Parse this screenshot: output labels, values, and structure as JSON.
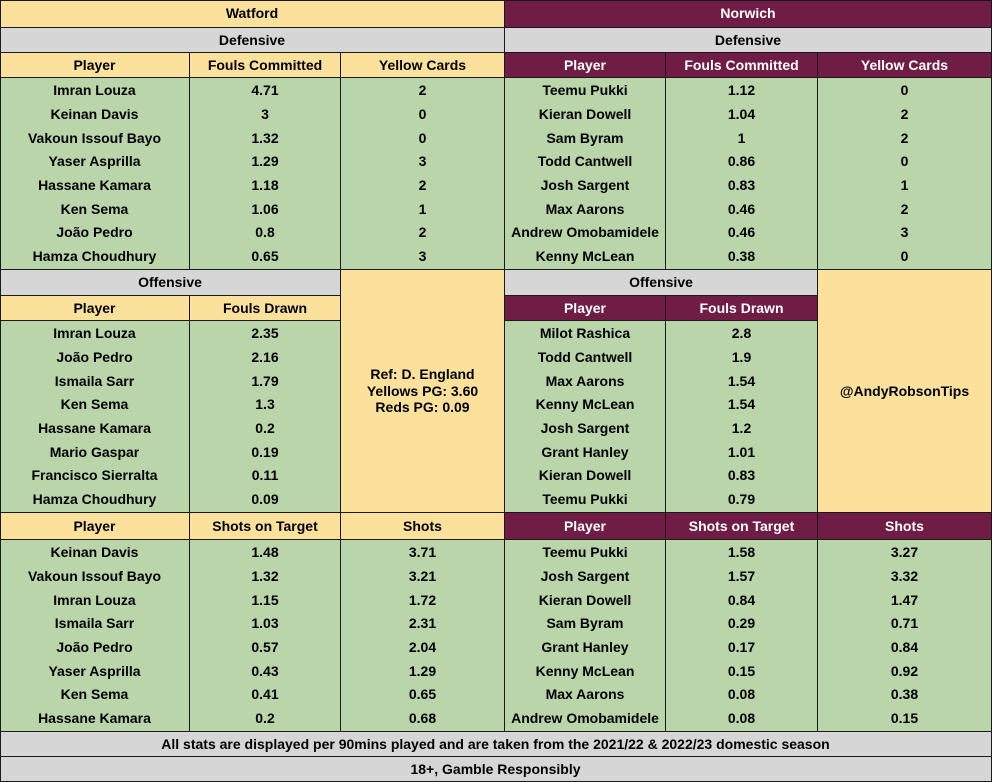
{
  "watford": {
    "team": "Watford",
    "defensive_label": "Defensive",
    "def_headers": [
      "Player",
      "Fouls Committed",
      "Yellow Cards"
    ],
    "def_players": [
      "Imran Louza",
      "Keinan Davis",
      "Vakoun Issouf Bayo",
      "Yaser Asprilla",
      "Hassane Kamara",
      "Ken Sema",
      "João Pedro",
      "Hamza Choudhury"
    ],
    "def_fouls": [
      "4.71",
      "3",
      "1.32",
      "1.29",
      "1.18",
      "1.06",
      "0.8",
      "0.65"
    ],
    "def_yellows": [
      "2",
      "0",
      "0",
      "3",
      "2",
      "1",
      "2",
      "3"
    ],
    "offensive_label": "Offensive",
    "off_headers": [
      "Player",
      "Fouls Drawn"
    ],
    "off_players": [
      "Imran Louza",
      "João Pedro",
      "Ismaila Sarr",
      "Ken Sema",
      "Hassane Kamara",
      "Mario Gaspar",
      "Francisco Sierralta",
      "Hamza Choudhury"
    ],
    "off_drawn": [
      "2.35",
      "2.16",
      "1.79",
      "1.3",
      "0.2",
      "0.19",
      "0.11",
      "0.09"
    ],
    "shot_headers": [
      "Player",
      "Shots on Target",
      "Shots"
    ],
    "shot_players": [
      "Keinan Davis",
      "Vakoun Issouf Bayo",
      "Imran Louza",
      "Ismaila Sarr",
      "João Pedro",
      "Yaser Asprilla",
      "Ken Sema",
      "Hassane Kamara"
    ],
    "shot_sot": [
      "1.48",
      "1.32",
      "1.15",
      "1.03",
      "0.57",
      "0.43",
      "0.41",
      "0.2"
    ],
    "shot_total": [
      "3.71",
      "3.21",
      "1.72",
      "2.31",
      "2.04",
      "1.29",
      "0.65",
      "0.68"
    ]
  },
  "norwich": {
    "team": "Norwich",
    "defensive_label": "Defensive",
    "def_headers": [
      "Player",
      "Fouls Committed",
      "Yellow Cards"
    ],
    "def_players": [
      "Teemu Pukki",
      "Kieran Dowell",
      "Sam Byram",
      "Todd Cantwell",
      "Josh Sargent",
      "Max Aarons",
      "Andrew Omobamidele",
      "Kenny McLean"
    ],
    "def_fouls": [
      "1.12",
      "1.04",
      "1",
      "0.86",
      "0.83",
      "0.46",
      "0.46",
      "0.38"
    ],
    "def_yellows": [
      "0",
      "2",
      "2",
      "0",
      "1",
      "2",
      "3",
      "0"
    ],
    "offensive_label": "Offensive",
    "off_headers": [
      "Player",
      "Fouls Drawn"
    ],
    "off_players": [
      "Milot Rashica",
      "Todd Cantwell",
      "Max Aarons",
      "Kenny McLean",
      "Josh Sargent",
      "Grant Hanley",
      "Kieran Dowell",
      "Teemu Pukki"
    ],
    "off_drawn": [
      "2.8",
      "1.9",
      "1.54",
      "1.54",
      "1.2",
      "1.01",
      "0.83",
      "0.79"
    ],
    "shot_headers": [
      "Player",
      "Shots on Target",
      "Shots"
    ],
    "shot_players": [
      "Teemu Pukki",
      "Josh Sargent",
      "Kieran Dowell",
      "Sam Byram",
      "Grant Hanley",
      "Kenny McLean",
      "Max Aarons",
      "Andrew Omobamidele"
    ],
    "shot_sot": [
      "1.58",
      "1.57",
      "0.84",
      "0.29",
      "0.17",
      "0.15",
      "0.08",
      "0.08"
    ],
    "shot_total": [
      "3.27",
      "3.32",
      "1.47",
      "0.71",
      "0.84",
      "0.92",
      "0.38",
      "0.15"
    ]
  },
  "referee": {
    "name": "Ref: D. England",
    "yellows": "Yellows PG: 3.60",
    "reds": "Reds PG: 0.09"
  },
  "handle": "@AndyRobsonTips",
  "footer": {
    "note": "All stats are displayed per 90mins played and are taken from the 2021/22 & 2022/23 domestic season",
    "disclaimer": "18+, Gamble Responsibly"
  },
  "colors": {
    "watford_header": "#fbe19c",
    "norwich_header": "#6f1d44",
    "section_grey": "#d6d6d6",
    "data_green": "#b9d5a9"
  }
}
